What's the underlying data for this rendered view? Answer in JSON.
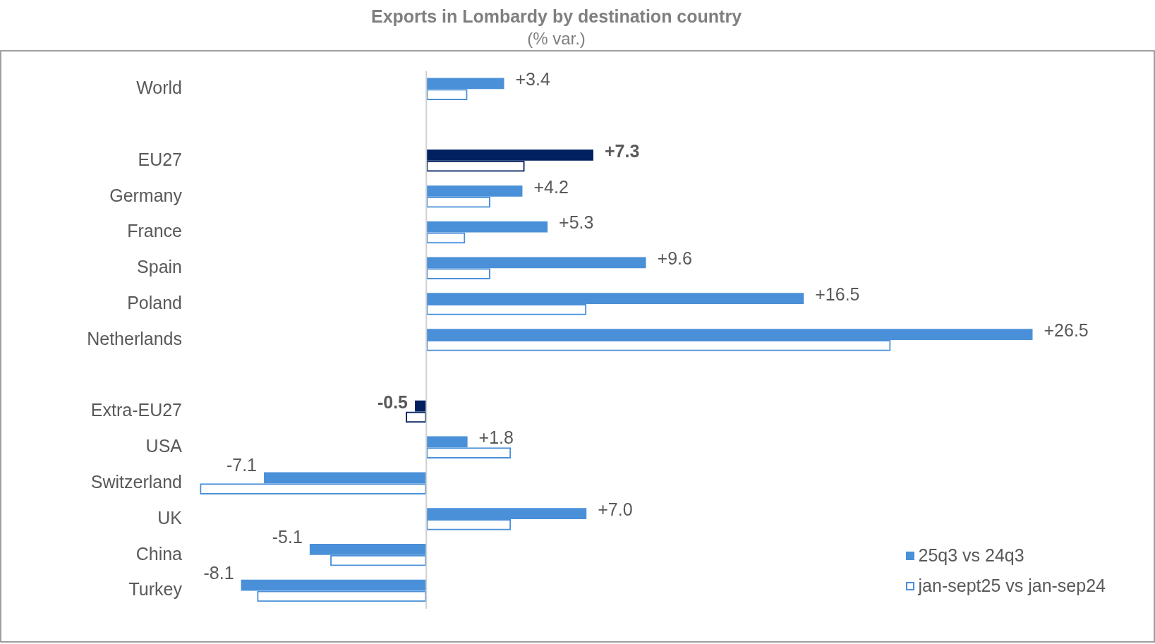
{
  "chart_data": {
    "type": "bar",
    "orientation": "horizontal",
    "title": "Exports in Lombardy by destination country",
    "subtitle": "(% var.)",
    "categories": [
      "World",
      null,
      "EU27",
      "Germany",
      "France",
      "Spain",
      "Poland",
      "Netherlands",
      null,
      "Extra-EU27",
      "USA",
      "Switzerland",
      "UK",
      "China",
      "Turkey"
    ],
    "series": [
      {
        "name": "25q3 vs 24q3",
        "color": "#4a90d9",
        "colors": [
          "#4a90d9",
          null,
          "#002060",
          "#4a90d9",
          "#4a90d9",
          "#4a90d9",
          "#4a90d9",
          "#4a90d9",
          null,
          "#002060",
          "#4a90d9",
          "#4a90d9",
          "#4a90d9",
          "#4a90d9",
          "#4a90d9"
        ],
        "values": [
          3.4,
          null,
          7.3,
          4.2,
          5.3,
          9.6,
          16.5,
          26.5,
          null,
          -0.5,
          1.8,
          -7.1,
          7.0,
          -5.1,
          -8.1
        ],
        "value_labels": [
          "+3.4",
          null,
          "+7.3",
          "+4.2",
          "+5.3",
          "+9.6",
          "+16.5",
          "+26.5",
          null,
          "-0.5",
          "+1.8",
          "-7.1",
          "+7.0",
          "-5.1",
          "-8.1"
        ]
      },
      {
        "name": "jan-sept25 vs jan-sep24",
        "color": "#4a90d9",
        "colors": [
          "#4a90d9",
          null,
          "#002060",
          "#4a90d9",
          "#4a90d9",
          "#4a90d9",
          "#4a90d9",
          "#4a90d9",
          null,
          "#002060",
          "#4a90d9",
          "#4a90d9",
          "#4a90d9",
          "#4a90d9",
          "#4a90d9"
        ],
        "values": [
          1.8,
          null,
          4.3,
          2.8,
          1.7,
          2.8,
          7.0,
          20.3,
          null,
          -0.9,
          3.7,
          -9.9,
          3.7,
          -4.2,
          -7.4
        ]
      }
    ],
    "tick_labels": "y",
    "grid": false,
    "legend": "bottom right"
  }
}
